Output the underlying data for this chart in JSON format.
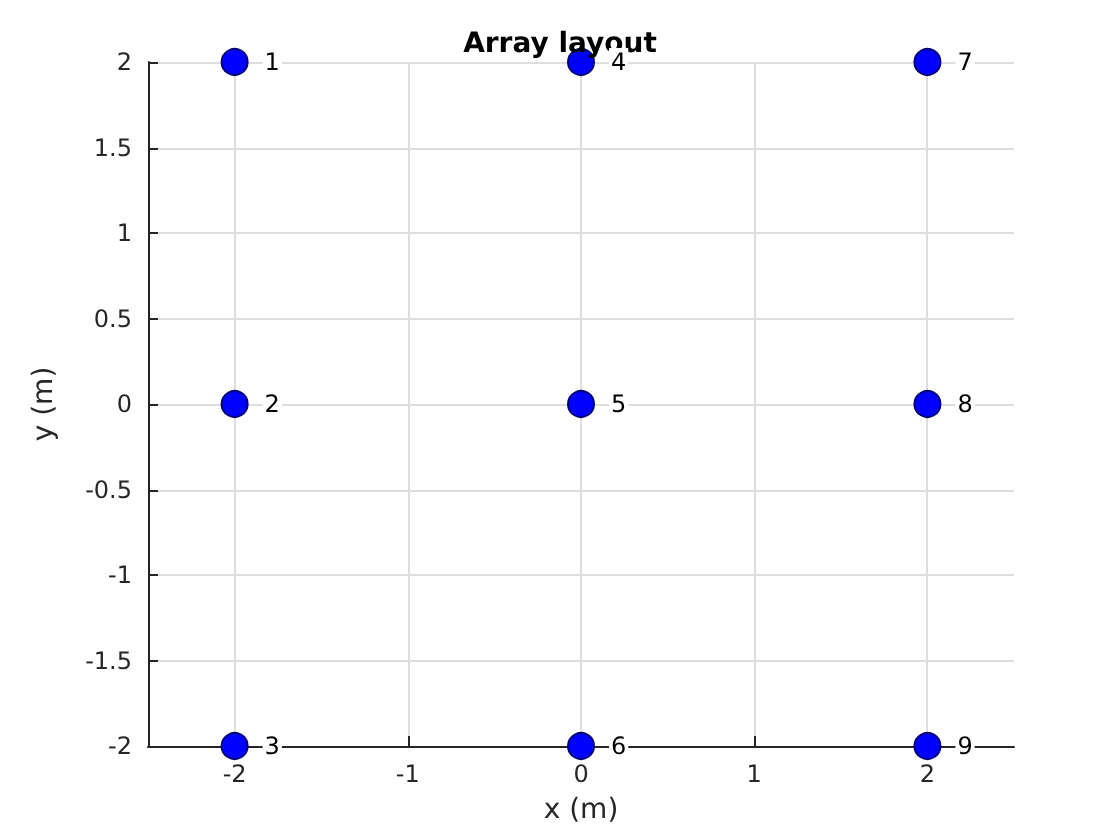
{
  "chart_data": {
    "type": "scatter",
    "title": "Array layout",
    "xlabel": "x (m)",
    "ylabel": "y (m)",
    "x": [
      -2,
      -2,
      -2,
      0,
      0,
      0,
      2,
      2,
      2
    ],
    "values": [
      2,
      0,
      -2,
      2,
      0,
      -2,
      2,
      0,
      -2
    ],
    "annotations": [
      {
        "text": "1",
        "x": -2,
        "y": 2
      },
      {
        "text": "2",
        "x": -2,
        "y": 0
      },
      {
        "text": "3",
        "x": -2,
        "y": -2
      },
      {
        "text": "4",
        "x": 0,
        "y": 2
      },
      {
        "text": "5",
        "x": 0,
        "y": 0
      },
      {
        "text": "6",
        "x": 0,
        "y": -2
      },
      {
        "text": "7",
        "x": 2,
        "y": 2
      },
      {
        "text": "8",
        "x": 2,
        "y": 0
      },
      {
        "text": "9",
        "x": 2,
        "y": -2
      }
    ],
    "color": "#0000ff",
    "marker": "circle",
    "xlim": [
      -2.5,
      2.5
    ],
    "xticks": [
      -2,
      -1,
      0,
      1,
      2
    ],
    "ylim": [
      -2,
      2
    ],
    "yticks": [
      -2,
      -1.5,
      -1,
      -0.5,
      0,
      0.5,
      1,
      1.5,
      2
    ],
    "grid": true
  }
}
